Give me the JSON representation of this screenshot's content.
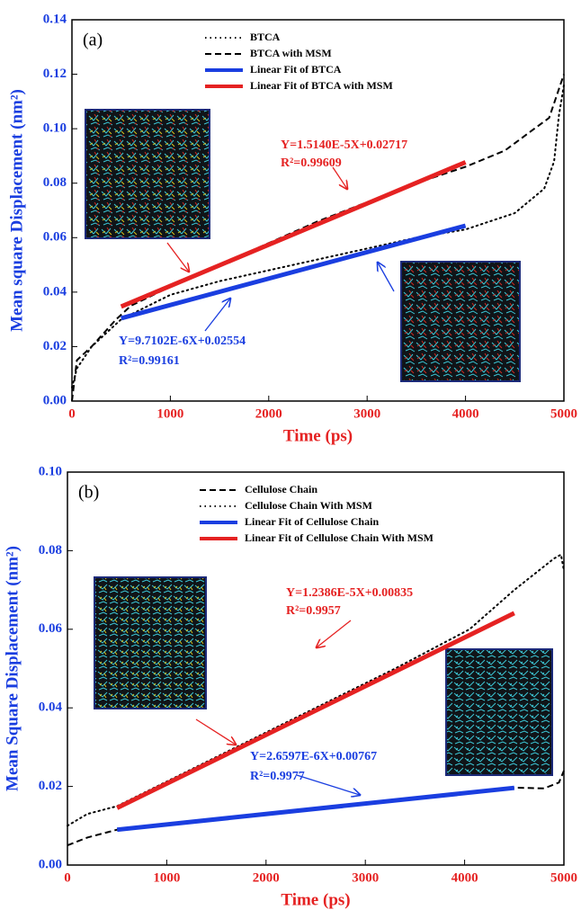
{
  "chart_data": [
    {
      "type": "line",
      "panel_label": "(a)",
      "x_label": "Time (ps)",
      "y_label": "Mean square Displacement (nm²)",
      "xlim": [
        0,
        5000
      ],
      "xticks": [
        0,
        1000,
        2000,
        3000,
        4000,
        5000
      ],
      "ylim": [
        0,
        0.14
      ],
      "yticks": [
        {
          "value": 0,
          "label": "0.00"
        },
        {
          "value": 0.02,
          "label": "0.02"
        },
        {
          "value": 0.04,
          "label": "0.04"
        },
        {
          "value": 0.06,
          "label": "0.06"
        },
        {
          "value": 0.08,
          "label": "0.08"
        },
        {
          "value": 0.1,
          "label": "0.10"
        },
        {
          "value": 0.12,
          "label": "0.12"
        },
        {
          "value": 0.14,
          "label": "0.14"
        }
      ],
      "legend": "upper center",
      "series": [
        {
          "name": "BTCA",
          "color": "#000000",
          "style": "dotted",
          "x": [
            0,
            50,
            200,
            500,
            1000,
            1500,
            2000,
            2500,
            3000,
            3500,
            4000,
            4500,
            4800,
            4900,
            4950,
            5000
          ],
          "values": [
            0.005,
            0.012,
            0.02,
            0.03,
            0.039,
            0.044,
            0.048,
            0.052,
            0.056,
            0.06,
            0.063,
            0.069,
            0.078,
            0.088,
            0.105,
            0.116
          ]
        },
        {
          "name": "BTCA with MSM",
          "color": "#000000",
          "style": "dashed",
          "x": [
            0,
            50,
            200,
            450,
            600,
            1000,
            1500,
            2000,
            2500,
            3000,
            3500,
            4000,
            4400,
            4700,
            4850,
            5000
          ],
          "values": [
            0,
            0.015,
            0.02,
            0.03,
            0.035,
            0.042,
            0.05,
            0.058,
            0.066,
            0.073,
            0.08,
            0.086,
            0.092,
            0.1,
            0.104,
            0.12
          ]
        },
        {
          "name": "Linear Fit of BTCA",
          "color": "#1a3ee0",
          "style": "solid",
          "x": [
            500,
            4000
          ],
          "values": [
            0.0304,
            0.0644
          ]
        },
        {
          "name": "Linear Fit of BTCA with MSM",
          "color": "#e52222",
          "style": "solid",
          "x": [
            500,
            4000
          ],
          "values": [
            0.0347,
            0.0877
          ]
        }
      ],
      "annotations": [
        {
          "text": "Y=1.5140E-5X+0.02717",
          "color": "#e52222"
        },
        {
          "text": "R²=0.99609",
          "color": "#e52222"
        },
        {
          "text": "Y=9.7102E-6X+0.02554",
          "color": "#1a3ee0"
        },
        {
          "text": "R²=0.99161",
          "color": "#1a3ee0"
        }
      ]
    },
    {
      "type": "line",
      "panel_label": "(b)",
      "x_label": "Time (ps)",
      "y_label": "Mean Square Displacement (nm²)",
      "xlim": [
        0,
        5000
      ],
      "xticks": [
        0,
        1000,
        2000,
        3000,
        4000,
        5000
      ],
      "ylim": [
        0,
        0.1
      ],
      "yticks": [
        {
          "value": 0,
          "label": "0.00"
        },
        {
          "value": 0.02,
          "label": "0.02"
        },
        {
          "value": 0.04,
          "label": "0.04"
        },
        {
          "value": 0.06,
          "label": "0.06"
        },
        {
          "value": 0.08,
          "label": "0.08"
        },
        {
          "value": 0.1,
          "label": "0.10"
        }
      ],
      "legend": "upper center",
      "series": [
        {
          "name": "Cellulose Chain",
          "color": "#000000",
          "style": "dashed",
          "x": [
            0,
            200,
            500,
            1000,
            2000,
            3000,
            4000,
            4500,
            4800,
            4950,
            5000
          ],
          "values": [
            0.005,
            0.007,
            0.009,
            0.0104,
            0.0131,
            0.0157,
            0.0184,
            0.0197,
            0.0195,
            0.021,
            0.024
          ]
        },
        {
          "name": "Cellulose Chain With MSM",
          "color": "#000000",
          "style": "dotted",
          "x": [
            0,
            200,
            500,
            900,
            1700,
            2500,
            3300,
            4050,
            4500,
            4900,
            4970,
            5000
          ],
          "values": [
            0.01,
            0.013,
            0.015,
            0.02,
            0.03,
            0.04,
            0.05,
            0.06,
            0.07,
            0.078,
            0.079,
            0.075
          ]
        },
        {
          "name": "Linear Fit of Cellulose Chain",
          "color": "#1a3ee0",
          "style": "solid",
          "x": [
            500,
            4500
          ],
          "values": [
            0.009,
            0.01964
          ]
        },
        {
          "name": "Linear Fit of Cellulose Chain With MSM",
          "color": "#e52222",
          "style": "solid",
          "x": [
            500,
            4500
          ],
          "values": [
            0.01454,
            0.06409
          ]
        }
      ],
      "annotations": [
        {
          "text": "Y=1.2386E-5X+0.00835",
          "color": "#e52222"
        },
        {
          "text": "R²=0.9957",
          "color": "#e52222"
        },
        {
          "text": "Y=2.6597E-6X+0.00767",
          "color": "#1a3ee0"
        },
        {
          "text": "R²=0.9977",
          "color": "#1a3ee0"
        }
      ]
    }
  ]
}
